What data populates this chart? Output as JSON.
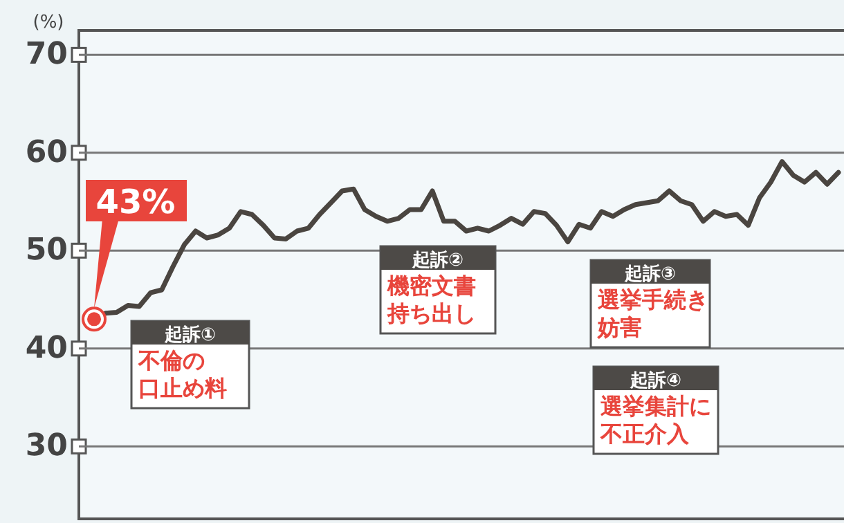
{
  "chart_data": {
    "type": "line",
    "ylabel": "(%)",
    "ylim": [
      22.6,
      72.5
    ],
    "yticks": [
      30,
      40,
      50,
      60,
      70
    ],
    "tick_labels": "y",
    "categories": [
      null,
      null,
      null,
      null,
      null,
      null,
      null,
      null,
      null,
      null,
      null,
      null,
      null,
      null,
      null,
      null,
      null,
      null,
      null,
      null,
      null,
      null,
      null,
      null,
      null,
      null,
      null,
      null,
      null,
      null,
      null,
      null,
      null,
      null,
      null,
      null,
      null,
      null,
      null,
      null,
      null,
      null,
      null,
      null,
      null,
      null,
      null,
      null,
      null,
      null,
      null,
      null,
      null,
      null,
      null,
      null,
      null,
      null,
      null,
      null,
      null,
      null,
      null,
      null,
      null,
      null,
      null
    ],
    "grid": "y",
    "marker": "none",
    "line_style": "solid",
    "series": [
      {
        "color": "#4a4540",
        "values": [
          43,
          43.6,
          43.7,
          44.4,
          44.3,
          45.7,
          46,
          48.4,
          50.6,
          52,
          51.3,
          51.6,
          52.3,
          54,
          53.7,
          52.6,
          51.3,
          51.2,
          52,
          52.3,
          53.7,
          54.9,
          56.1,
          56.3,
          54.2,
          53.5,
          53,
          53.3,
          54.2,
          54.2,
          56.1,
          53,
          53,
          52,
          52.3,
          52,
          52.6,
          53.3,
          52.7,
          54,
          53.8,
          52.6,
          50.9,
          52.7,
          52.3,
          54,
          53.5,
          54.2,
          54.7,
          54.9,
          55.1,
          56.1,
          55.1,
          54.7,
          53,
          54,
          53.5,
          53.7,
          52.6,
          55.4,
          57,
          59.1,
          57.7,
          57,
          58,
          56.8,
          58
        ]
      }
    ],
    "annotations": [
      "43%",
      "起訴①",
      "不倫の口止め料",
      "起訴②",
      "機密文書持ち出し",
      "起訴③",
      "選挙手続き妨害",
      "起訴④",
      "選挙集計に不正介入"
    ]
  }
}
